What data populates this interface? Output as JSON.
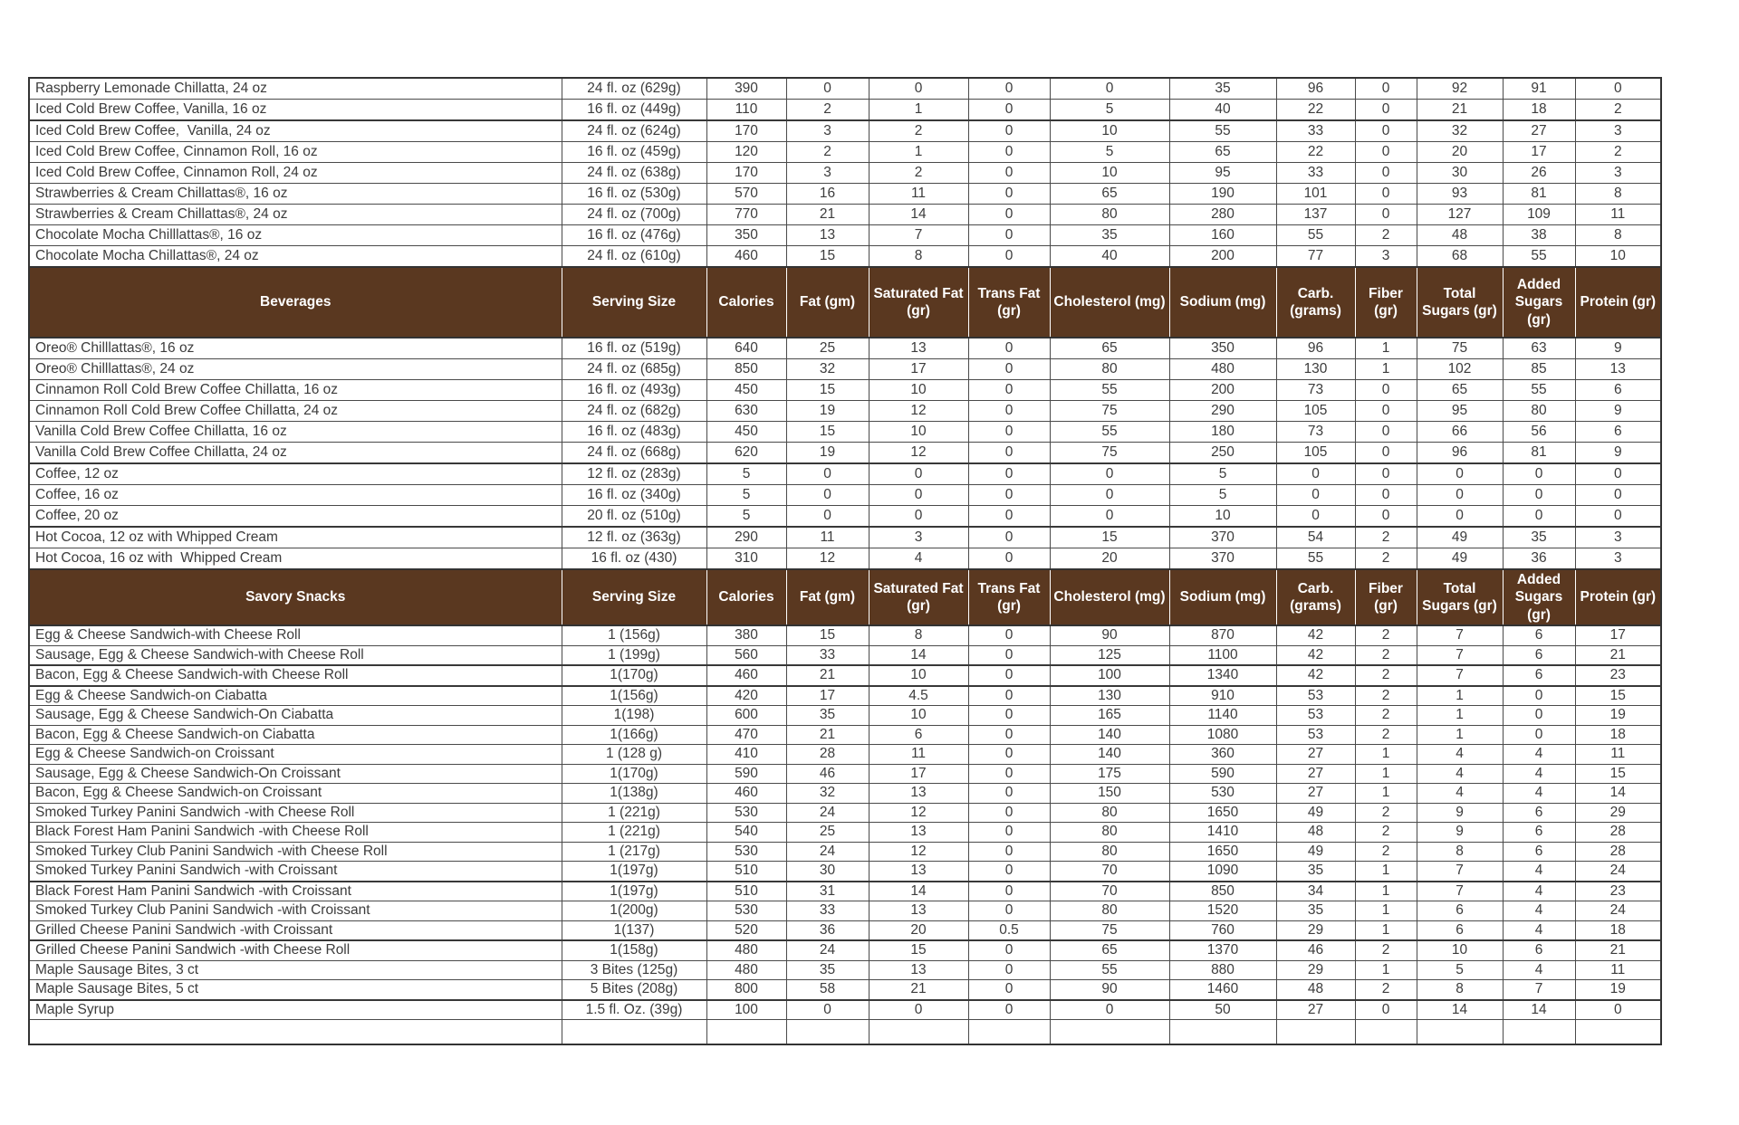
{
  "colors": {
    "header_bg": "#5A3820",
    "header_text": "#FFFFFF",
    "border": "#4A4A4A",
    "text": "#3C3C3C"
  },
  "table": {
    "columns": [
      "Serving Size",
      "Calories",
      "Fat (gm)",
      "Saturated Fat (gr)",
      "Trans Fat (gr)",
      "Cholesterol (mg)",
      "Sodium (mg)",
      "Carb. (grams)",
      "Fiber (gr)",
      "Total Sugars (gr)",
      "Added Sugars (gr)",
      "Protein (gr)"
    ],
    "sections": [
      {
        "label": null,
        "rows": [
          {
            "name": "Raspberry Lemonade Chillatta, 24 oz",
            "values": [
              "24 fl. oz (629g)",
              "390",
              "0",
              "0",
              "0",
              "0",
              "35",
              "96",
              "0",
              "92",
              "91",
              "0"
            ]
          },
          {
            "name": "Iced Cold Brew Coffee, Vanilla, 16 oz",
            "values": [
              "16 fl. oz (449g)",
              "110",
              "2",
              "1",
              "0",
              "5",
              "40",
              "22",
              "0",
              "21",
              "18",
              "2"
            ]
          },
          {
            "name": "Iced Cold Brew Coffee,  Vanilla, 24 oz",
            "thick": true,
            "values": [
              "24 fl. oz (624g)",
              "170",
              "3",
              "2",
              "0",
              "10",
              "55",
              "33",
              "0",
              "32",
              "27",
              "3"
            ]
          },
          {
            "name": "Iced Cold Brew Coffee, Cinnamon Roll, 16 oz",
            "values": [
              "16 fl. oz (459g)",
              "120",
              "2",
              "1",
              "0",
              "5",
              "65",
              "22",
              "0",
              "20",
              "17",
              "2"
            ]
          },
          {
            "name": "Iced Cold Brew Coffee, Cinnamon Roll, 24 oz",
            "values": [
              "24 fl. oz (638g)",
              "170",
              "3",
              "2",
              "0",
              "10",
              "95",
              "33",
              "0",
              "30",
              "26",
              "3"
            ]
          },
          {
            "name": "Strawberries & Cream Chillattas®, 16 oz",
            "values": [
              "16 fl. oz (530g)",
              "570",
              "16",
              "11",
              "0",
              "65",
              "190",
              "101",
              "0",
              "93",
              "81",
              "8"
            ]
          },
          {
            "name": "Strawberries & Cream Chillattas®, 24 oz",
            "values": [
              "24 fl. oz (700g)",
              "770",
              "21",
              "14",
              "0",
              "80",
              "280",
              "137",
              "0",
              "127",
              "109",
              "11"
            ]
          },
          {
            "name": "Chocolate Mocha Chilllattas®, 16 oz",
            "values": [
              "16 fl. oz (476g)",
              "350",
              "13",
              "7",
              "0",
              "35",
              "160",
              "55",
              "2",
              "48",
              "38",
              "8"
            ]
          },
          {
            "name": "Chocolate Mocha Chillattas®, 24 oz",
            "values": [
              "24 fl. oz (610g)",
              "460",
              "15",
              "8",
              "0",
              "40",
              "200",
              "77",
              "3",
              "68",
              "55",
              "10"
            ]
          }
        ]
      },
      {
        "label": "Beverages",
        "rows": [
          {
            "name": "Oreo® Chilllattas®, 16 oz",
            "values": [
              "16 fl. oz (519g)",
              "640",
              "25",
              "13",
              "0",
              "65",
              "350",
              "96",
              "1",
              "75",
              "63",
              "9"
            ]
          },
          {
            "name": "Oreo® Chilllattas®, 24 oz",
            "values": [
              "24 fl. oz (685g)",
              "850",
              "32",
              "17",
              "0",
              "80",
              "480",
              "130",
              "1",
              "102",
              "85",
              "13"
            ]
          },
          {
            "name": "Cinnamon Roll Cold Brew Coffee Chillatta, 16 oz",
            "values": [
              "16 fl. oz (493g)",
              "450",
              "15",
              "10",
              "0",
              "55",
              "200",
              "73",
              "0",
              "65",
              "55",
              "6"
            ]
          },
          {
            "name": "Cinnamon Roll Cold Brew Coffee Chillatta, 24 oz",
            "values": [
              "24 fl. oz (682g)",
              "630",
              "19",
              "12",
              "0",
              "75",
              "290",
              "105",
              "0",
              "95",
              "80",
              "9"
            ]
          },
          {
            "name": "Vanilla Cold Brew Coffee Chillatta, 16 oz",
            "values": [
              "16 fl. oz (483g)",
              "450",
              "15",
              "10",
              "0",
              "55",
              "180",
              "73",
              "0",
              "66",
              "56",
              "6"
            ]
          },
          {
            "name": "Vanilla Cold Brew Coffee Chillatta, 24 oz",
            "values": [
              "24 fl. oz (668g)",
              "620",
              "19",
              "12",
              "0",
              "75",
              "250",
              "105",
              "0",
              "96",
              "81",
              "9"
            ]
          },
          {
            "name": "Coffee, 12 oz",
            "thick": true,
            "values": [
              "12 fl. oz (283g)",
              "5",
              "0",
              "0",
              "0",
              "0",
              "5",
              "0",
              "0",
              "0",
              "0",
              "0"
            ]
          },
          {
            "name": "Coffee, 16 oz",
            "values": [
              "16 fl. oz (340g)",
              "5",
              "0",
              "0",
              "0",
              "0",
              "5",
              "0",
              "0",
              "0",
              "0",
              "0"
            ]
          },
          {
            "name": "Coffee, 20 oz",
            "values": [
              "20 fl. oz (510g)",
              "5",
              "0",
              "0",
              "0",
              "0",
              "10",
              "0",
              "0",
              "0",
              "0",
              "0"
            ]
          },
          {
            "name": "Hot Cocoa, 12 oz with Whipped Cream",
            "thick": true,
            "values": [
              "12 fl. oz (363g)",
              "290",
              "11",
              "3",
              "0",
              "15",
              "370",
              "54",
              "2",
              "49",
              "35",
              "3"
            ]
          },
          {
            "name": "Hot Cocoa, 16 oz with  Whipped Cream",
            "values": [
              "16 fl. oz (430)",
              "310",
              "12",
              "4",
              "0",
              "20",
              "370",
              "55",
              "2",
              "49",
              "36",
              "3"
            ]
          }
        ]
      },
      {
        "label": "Savory Snacks",
        "rows": [
          {
            "name": "Egg & Cheese Sandwich-with Cheese Roll",
            "values": [
              "1 (156g)",
              "380",
              "15",
              "8",
              "0",
              "90",
              "870",
              "42",
              "2",
              "7",
              "6",
              "17"
            ]
          },
          {
            "name": "Sausage, Egg & Cheese Sandwich-with Cheese Roll",
            "values": [
              "1 (199g)",
              "560",
              "33",
              "14",
              "0",
              "125",
              "1100",
              "42",
              "2",
              "7",
              "6",
              "21"
            ]
          },
          {
            "name": "Bacon, Egg & Cheese Sandwich-with Cheese Roll",
            "thick": true,
            "values": [
              "1(170g)",
              "460",
              "21",
              "10",
              "0",
              "100",
              "1340",
              "42",
              "2",
              "7",
              "6",
              "23"
            ]
          },
          {
            "name": "Egg & Cheese Sandwich-on Ciabatta",
            "thick": true,
            "values": [
              "1(156g)",
              "420",
              "17",
              "4.5",
              "0",
              "130",
              "910",
              "53",
              "2",
              "1",
              "0",
              "15"
            ]
          },
          {
            "name": "Sausage, Egg & Cheese Sandwich-On Ciabatta",
            "values": [
              "1(198)",
              "600",
              "35",
              "10",
              "0",
              "165",
              "1140",
              "53",
              "2",
              "1",
              "0",
              "19"
            ]
          },
          {
            "name": "Bacon, Egg & Cheese Sandwich-on Ciabatta",
            "values": [
              "1(166g)",
              "470",
              "21",
              "6",
              "0",
              "140",
              "1080",
              "53",
              "2",
              "1",
              "0",
              "18"
            ]
          },
          {
            "name": "Egg & Cheese Sandwich-on Croissant",
            "values": [
              "1 (128 g)",
              "410",
              "28",
              "11",
              "0",
              "140",
              "360",
              "27",
              "1",
              "4",
              "4",
              "11"
            ]
          },
          {
            "name": "Sausage, Egg & Cheese Sandwich-On Croissant",
            "values": [
              "1(170g)",
              "590",
              "46",
              "17",
              "0",
              "175",
              "590",
              "27",
              "1",
              "4",
              "4",
              "15"
            ]
          },
          {
            "name": "Bacon, Egg & Cheese Sandwich-on Croissant",
            "values": [
              "1(138g)",
              "460",
              "32",
              "13",
              "0",
              "150",
              "530",
              "27",
              "1",
              "4",
              "4",
              "14"
            ]
          },
          {
            "name": "Smoked Turkey Panini Sandwich -with Cheese Roll",
            "values": [
              "1 (221g)",
              "530",
              "24",
              "12",
              "0",
              "80",
              "1650",
              "49",
              "2",
              "9",
              "6",
              "29"
            ]
          },
          {
            "name": "Black Forest Ham Panini Sandwich -with Cheese Roll",
            "values": [
              "1 (221g)",
              "540",
              "25",
              "13",
              "0",
              "80",
              "1410",
              "48",
              "2",
              "9",
              "6",
              "28"
            ]
          },
          {
            "name": "Smoked Turkey Club Panini Sandwich -with Cheese Roll",
            "values": [
              "1 (217g)",
              "530",
              "24",
              "12",
              "0",
              "80",
              "1650",
              "49",
              "2",
              "8",
              "6",
              "28"
            ]
          },
          {
            "name": "Smoked Turkey Panini Sandwich -with Croissant",
            "values": [
              "1(197g)",
              "510",
              "30",
              "13",
              "0",
              "70",
              "1090",
              "35",
              "1",
              "7",
              "4",
              "24"
            ]
          },
          {
            "name": "Black Forest Ham Panini Sandwich -with Croissant",
            "thick": true,
            "values": [
              "1(197g)",
              "510",
              "31",
              "14",
              "0",
              "70",
              "850",
              "34",
              "1",
              "7",
              "4",
              "23"
            ]
          },
          {
            "name": "Smoked Turkey Club Panini Sandwich -with Croissant",
            "values": [
              "1(200g)",
              "530",
              "33",
              "13",
              "0",
              "80",
              "1520",
              "35",
              "1",
              "6",
              "4",
              "24"
            ]
          },
          {
            "name": "Grilled Cheese Panini Sandwich -with Croissant",
            "values": [
              "1(137)",
              "520",
              "36",
              "20",
              "0.5",
              "75",
              "760",
              "29",
              "1",
              "6",
              "4",
              "18"
            ]
          },
          {
            "name": "Grilled Cheese Panini Sandwich -with Cheese Roll",
            "thick": true,
            "values": [
              "1(158g)",
              "480",
              "24",
              "15",
              "0",
              "65",
              "1370",
              "46",
              "2",
              "10",
              "6",
              "21"
            ]
          },
          {
            "name": "Maple Sausage Bites, 3 ct",
            "values": [
              "3 Bites (125g)",
              "480",
              "35",
              "13",
              "0",
              "55",
              "880",
              "29",
              "1",
              "5",
              "4",
              "11"
            ]
          },
          {
            "name": "Maple Sausage Bites, 5 ct",
            "values": [
              "5 Bites (208g)",
              "800",
              "58",
              "21",
              "0",
              "90",
              "1460",
              "48",
              "2",
              "8",
              "7",
              "19"
            ]
          },
          {
            "name": "Maple Syrup",
            "thick": true,
            "values": [
              "1.5 fl. Oz. (39g)",
              "100",
              "0",
              "0",
              "0",
              "0",
              "50",
              "27",
              "0",
              "14",
              "14",
              "0"
            ]
          },
          {
            "name": "",
            "empty": true,
            "values": [
              "",
              "",
              "",
              "",
              "",
              "",
              "",
              "",
              "",
              "",
              "",
              ""
            ]
          }
        ]
      }
    ]
  }
}
